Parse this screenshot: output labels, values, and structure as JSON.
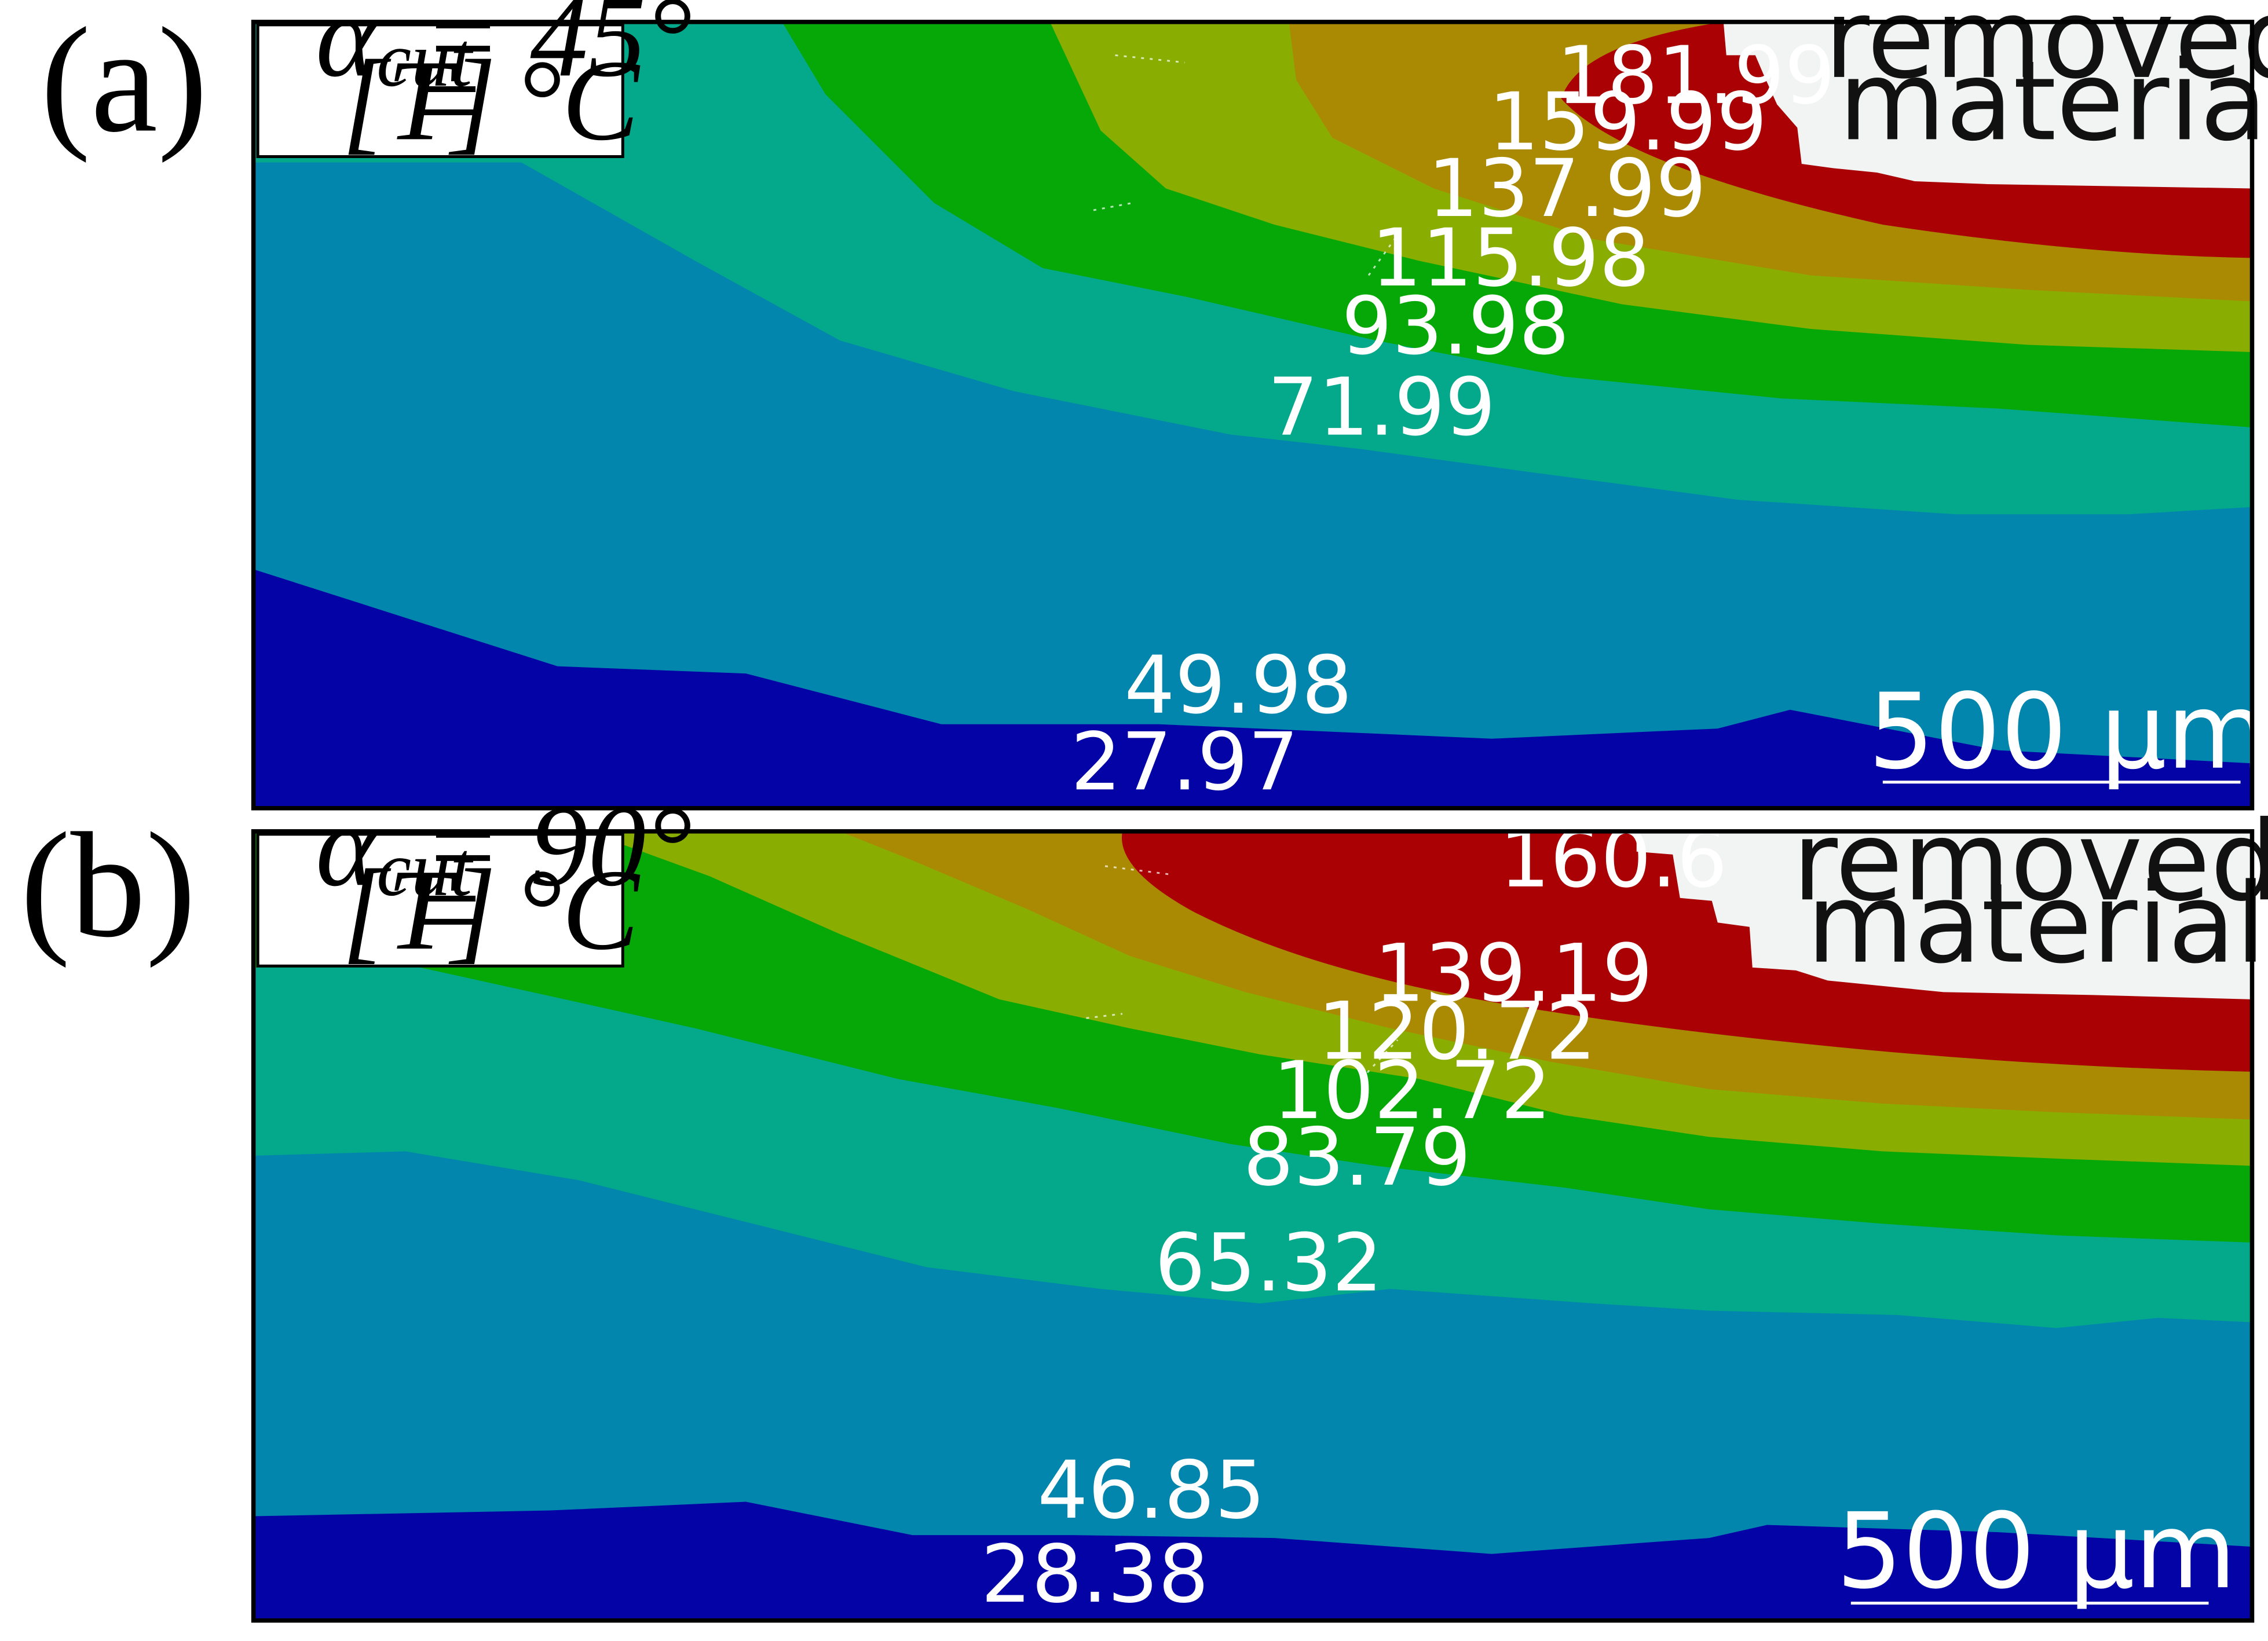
{
  "colors": {
    "band_0": "#0303a6",
    "band_1": "#0286ad",
    "band_2": "#03a98a",
    "band_3": "#05a806",
    "band_4": "#8aad02",
    "band_5": "#aa8a02",
    "band_6": "#aa0204",
    "removed": "#f2f4f4",
    "frame": "#000000"
  },
  "panels": [
    {
      "id": "a",
      "label": "(a)",
      "alpha_value": "= 45°",
      "temp_unit": "= °C",
      "removed_label_line1": "removed",
      "removed_label_line2": "material",
      "scale_label": "500 µm",
      "contour_labels": [
        "181.99",
        "159.99",
        "137.99",
        "115.98",
        "93.98",
        "71.99",
        "49.98",
        "27.97"
      ]
    },
    {
      "id": "b",
      "label": "(b)",
      "alpha_value": "= 90°",
      "temp_unit": "= °C",
      "removed_label_line1": "removed",
      "removed_label_line2": "material",
      "scale_label": "500 µm",
      "contour_labels": [
        "160.6",
        "139.19",
        "120.72",
        "102.72",
        "83.79",
        "65.32",
        "46.85",
        "28.38"
      ]
    }
  ]
}
